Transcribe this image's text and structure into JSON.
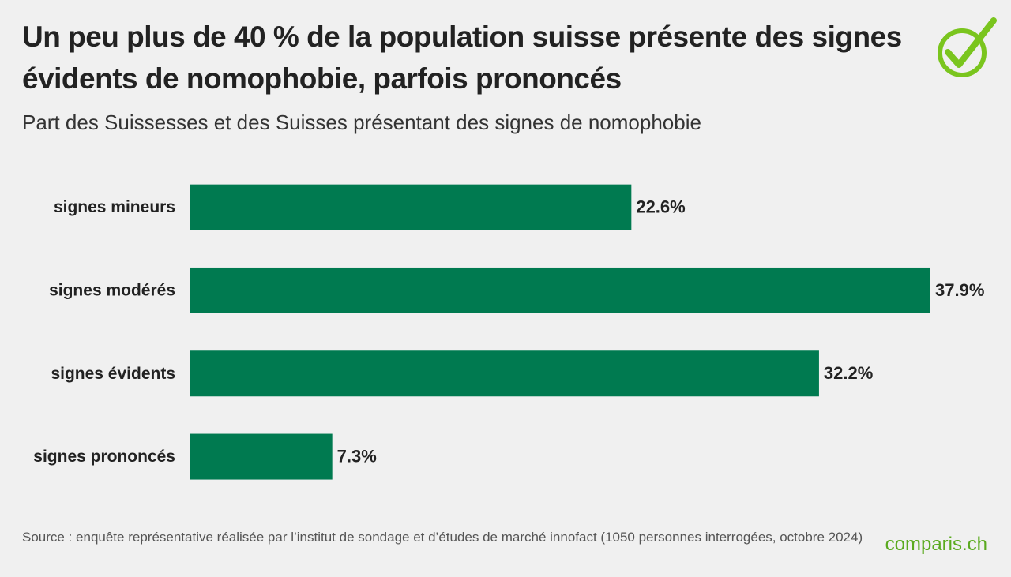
{
  "chart_data": {
    "type": "bar",
    "orientation": "horizontal",
    "title": "Un peu plus de 40 % de la population suisse présente des signes évidents de nomophobie, parfois prononcés",
    "subtitle": "Part des Suissesses et des Suisses présentant des signes de nomophobie",
    "categories": [
      "signes mineurs",
      "signes modérés",
      "signes évidents",
      "signes prononcés"
    ],
    "values": [
      22.6,
      37.9,
      32.2,
      7.3
    ],
    "value_labels": [
      "22.6%",
      "37.9%",
      "32.2%",
      "7.3%"
    ],
    "color": "#007a50",
    "source": "Source : enquête représentative réalisée par l’institut de sondage et d’études de marché innofact (1050 personnes interrogées, octobre 2024)",
    "logo": "comparis.ch"
  }
}
